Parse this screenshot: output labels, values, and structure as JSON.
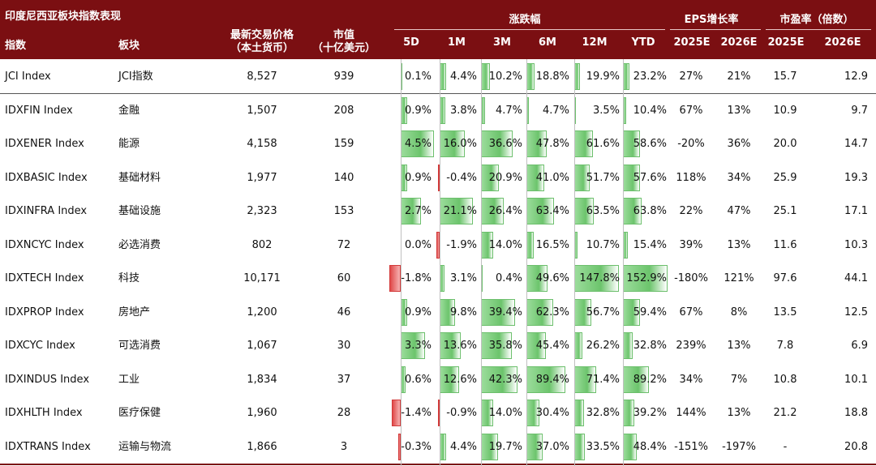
{
  "header": {
    "title": "印度尼西亚板块指数表现",
    "col_index": "指数",
    "col_sector": "板块",
    "col_price": [
      "最新交易价格",
      "（本土货币）"
    ],
    "col_mktcap": [
      "市值",
      "（十亿美元）"
    ],
    "group_return": "涨跌幅",
    "group_eps": "EPS增长率",
    "group_pe": "市盈率（倍数）",
    "returns": [
      "5D",
      "1M",
      "3M",
      "6M",
      "12M",
      "YTD"
    ],
    "eps": [
      "2025E",
      "2026E"
    ],
    "pe": [
      "2025E",
      "2026E"
    ]
  },
  "rows": [
    {
      "index": "JCI Index",
      "sector": "JCI指数",
      "price": "8,527",
      "mktcap": "939",
      "d5": "0.1%",
      "m1": "4.4%",
      "m3": "10.2%",
      "m6": "18.8%",
      "m12": "19.9%",
      "ytd": "23.2%",
      "eps25": "27%",
      "eps26": "21%",
      "pe25": "15.7",
      "pe26": "12.9"
    },
    {
      "index": "IDXFIN Index",
      "sector": "金融",
      "price": "1,507",
      "mktcap": "208",
      "d5": "0.9%",
      "m1": "3.8%",
      "m3": "4.7%",
      "m6": "4.7%",
      "m12": "3.5%",
      "ytd": "10.4%",
      "eps25": "67%",
      "eps26": "13%",
      "pe25": "10.9",
      "pe26": "9.7"
    },
    {
      "index": "IDXENER Index",
      "sector": "能源",
      "price": "4,158",
      "mktcap": "159",
      "d5": "4.5%",
      "m1": "16.0%",
      "m3": "36.6%",
      "m6": "47.8%",
      "m12": "61.6%",
      "ytd": "58.6%",
      "eps25": "-20%",
      "eps26": "36%",
      "pe25": "20.0",
      "pe26": "14.7"
    },
    {
      "index": "IDXBASIC Index",
      "sector": "基础材料",
      "price": "1,977",
      "mktcap": "140",
      "d5": "0.9%",
      "m1": "-0.4%",
      "m3": "20.9%",
      "m6": "41.0%",
      "m12": "51.7%",
      "ytd": "57.6%",
      "eps25": "118%",
      "eps26": "34%",
      "pe25": "25.9",
      "pe26": "19.3"
    },
    {
      "index": "IDXINFRA Index",
      "sector": "基础设施",
      "price": "2,323",
      "mktcap": "153",
      "d5": "2.7%",
      "m1": "21.1%",
      "m3": "26.4%",
      "m6": "63.4%",
      "m12": "63.5%",
      "ytd": "63.8%",
      "eps25": "22%",
      "eps26": "47%",
      "pe25": "25.1",
      "pe26": "17.1"
    },
    {
      "index": "IDXNCYC Index",
      "sector": "必选消费",
      "price": "802",
      "mktcap": "72",
      "d5": "0.0%",
      "m1": "-1.9%",
      "m3": "14.0%",
      "m6": "16.5%",
      "m12": "10.7%",
      "ytd": "15.4%",
      "eps25": "39%",
      "eps26": "13%",
      "pe25": "11.6",
      "pe26": "10.3"
    },
    {
      "index": "IDXTECH Index",
      "sector": "科技",
      "price": "10,171",
      "mktcap": "60",
      "d5": "-1.8%",
      "m1": "3.1%",
      "m3": "0.4%",
      "m6": "49.6%",
      "m12": "147.8%",
      "ytd": "152.9%",
      "eps25": "-180%",
      "eps26": "121%",
      "pe25": "97.6",
      "pe26": "44.1"
    },
    {
      "index": "IDXPROP Index",
      "sector": "房地产",
      "price": "1,200",
      "mktcap": "46",
      "d5": "0.9%",
      "m1": "9.8%",
      "m3": "39.4%",
      "m6": "62.3%",
      "m12": "56.7%",
      "ytd": "59.4%",
      "eps25": "67%",
      "eps26": "8%",
      "pe25": "13.5",
      "pe26": "12.5"
    },
    {
      "index": "IDXCYC Index",
      "sector": "可选消费",
      "price": "1,067",
      "mktcap": "30",
      "d5": "3.3%",
      "m1": "13.6%",
      "m3": "35.8%",
      "m6": "45.4%",
      "m12": "26.2%",
      "ytd": "32.8%",
      "eps25": "239%",
      "eps26": "13%",
      "pe25": "7.8",
      "pe26": "6.9"
    },
    {
      "index": "IDXINDUS Index",
      "sector": "工业",
      "price": "1,834",
      "mktcap": "37",
      "d5": "0.6%",
      "m1": "12.6%",
      "m3": "42.3%",
      "m6": "89.4%",
      "m12": "71.4%",
      "ytd": "89.2%",
      "eps25": "34%",
      "eps26": "7%",
      "pe25": "10.8",
      "pe26": "10.1"
    },
    {
      "index": "IDXHLTH Index",
      "sector": "医疗保健",
      "price": "1,960",
      "mktcap": "28",
      "d5": "-1.4%",
      "m1": "-0.9%",
      "m3": "14.0%",
      "m6": "30.4%",
      "m12": "32.8%",
      "ytd": "39.2%",
      "eps25": "144%",
      "eps26": "13%",
      "pe25": "21.2",
      "pe26": "18.8"
    },
    {
      "index": "IDXTRANS Index",
      "sector": "运输与物流",
      "price": "1,866",
      "mktcap": "3",
      "d5": "-0.3%",
      "m1": "4.4%",
      "m3": "19.7%",
      "m6": "37.0%",
      "m12": "33.5%",
      "ytd": "48.4%",
      "eps25": "-151%",
      "eps26": "-197%",
      "pe25": "-",
      "pe26": "20.8"
    }
  ]
}
